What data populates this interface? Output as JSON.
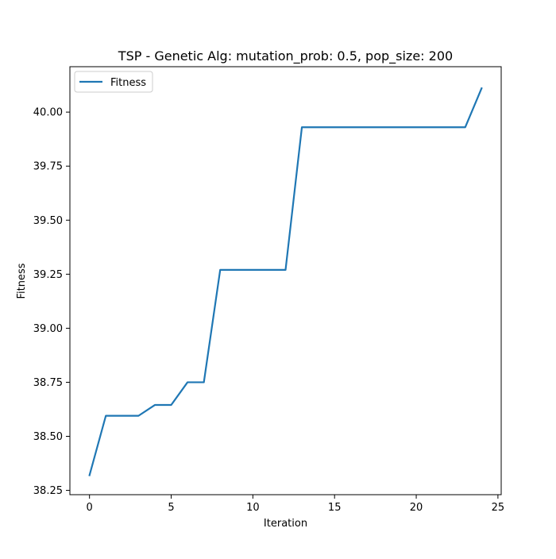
{
  "chart_data": {
    "type": "line",
    "title": "TSP - Genetic Alg: mutation_prob: 0.5, pop_size: 200",
    "xlabel": "Iteration",
    "ylabel": "Fitness",
    "xlim": [
      -1.2,
      25.2
    ],
    "ylim": [
      38.23,
      40.21
    ],
    "xticks": [
      0,
      5,
      10,
      15,
      20,
      25
    ],
    "yticks": [
      38.25,
      38.5,
      38.75,
      39.0,
      39.25,
      39.5,
      39.75,
      40.0
    ],
    "ytick_labels": [
      "38.25",
      "38.50",
      "38.75",
      "39.00",
      "39.25",
      "39.50",
      "39.75",
      "40.00"
    ],
    "grid": false,
    "legend_position": "upper-left",
    "series": [
      {
        "name": "Fitness",
        "color": "#1f77b4",
        "x": [
          0,
          1,
          2,
          3,
          4,
          5,
          6,
          7,
          8,
          9,
          10,
          11,
          12,
          13,
          14,
          15,
          16,
          17,
          18,
          19,
          20,
          21,
          22,
          23,
          24
        ],
        "values": [
          38.32,
          38.595,
          38.595,
          38.595,
          38.645,
          38.645,
          38.75,
          38.75,
          39.27,
          39.27,
          39.27,
          39.27,
          39.27,
          39.93,
          39.93,
          39.93,
          39.93,
          39.93,
          39.93,
          39.93,
          39.93,
          39.93,
          39.93,
          39.93,
          40.11
        ]
      }
    ]
  }
}
